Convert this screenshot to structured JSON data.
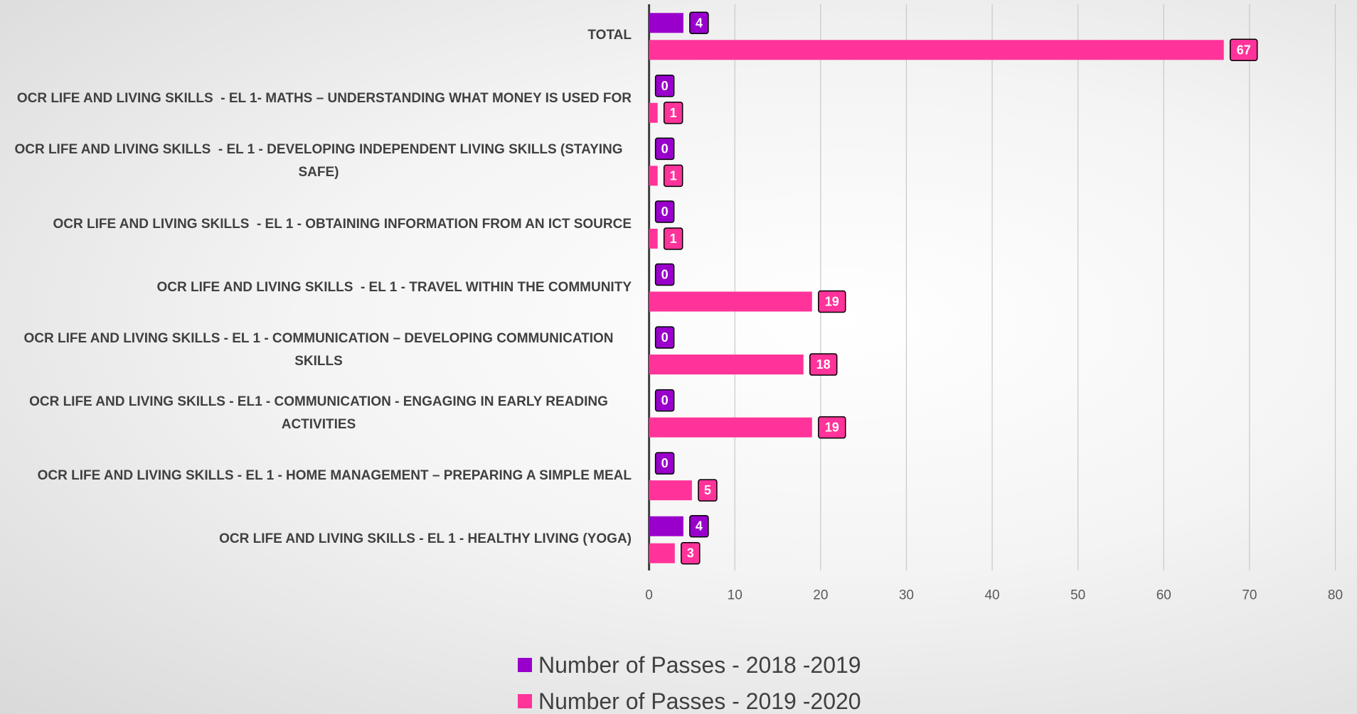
{
  "chart_data": {
    "type": "bar",
    "orientation": "horizontal",
    "categories": [
      "TOTAL",
      "OCR LIFE AND LIVING SKILLS  - EL 1- MATHS – UNDERSTANDING WHAT MONEY IS USED FOR",
      "OCR LIFE AND LIVING SKILLS  - EL 1 - DEVELOPING INDEPENDENT LIVING SKILLS (STAYING SAFE)",
      "OCR LIFE AND LIVING SKILLS  - EL 1 - OBTAINING INFORMATION FROM AN ICT SOURCE",
      "OCR LIFE AND LIVING SKILLS  - EL 1 - TRAVEL WITHIN THE COMMUNITY",
      "OCR LIFE AND LIVING SKILLS - EL 1 - COMMUNICATION – DEVELOPING COMMUNICATION SKILLS",
      "OCR LIFE AND LIVING SKILLS - EL1 - COMMUNICATION - ENGAGING IN EARLY READING ACTIVITIES",
      "OCR LIFE AND LIVING SKILLS - EL 1 - HOME MANAGEMENT – PREPARING A SIMPLE MEAL",
      "OCR LIFE AND LIVING SKILLS - EL 1 - HEALTHY LIVING (YOGA)"
    ],
    "series": [
      {
        "name": "Number of Passes - 2018 -2019",
        "color": "#9900cc",
        "values": [
          4,
          0,
          0,
          0,
          0,
          0,
          0,
          0,
          4
        ]
      },
      {
        "name": "Number of Passes - 2019 -2020",
        "color": "#ff3399",
        "values": [
          67,
          1,
          1,
          1,
          19,
          18,
          19,
          5,
          3
        ]
      }
    ],
    "xlim": [
      0,
      80
    ],
    "xticks": [
      0,
      10,
      20,
      30,
      40,
      50,
      60,
      70,
      80
    ],
    "grid": true,
    "legend": "bottom"
  }
}
